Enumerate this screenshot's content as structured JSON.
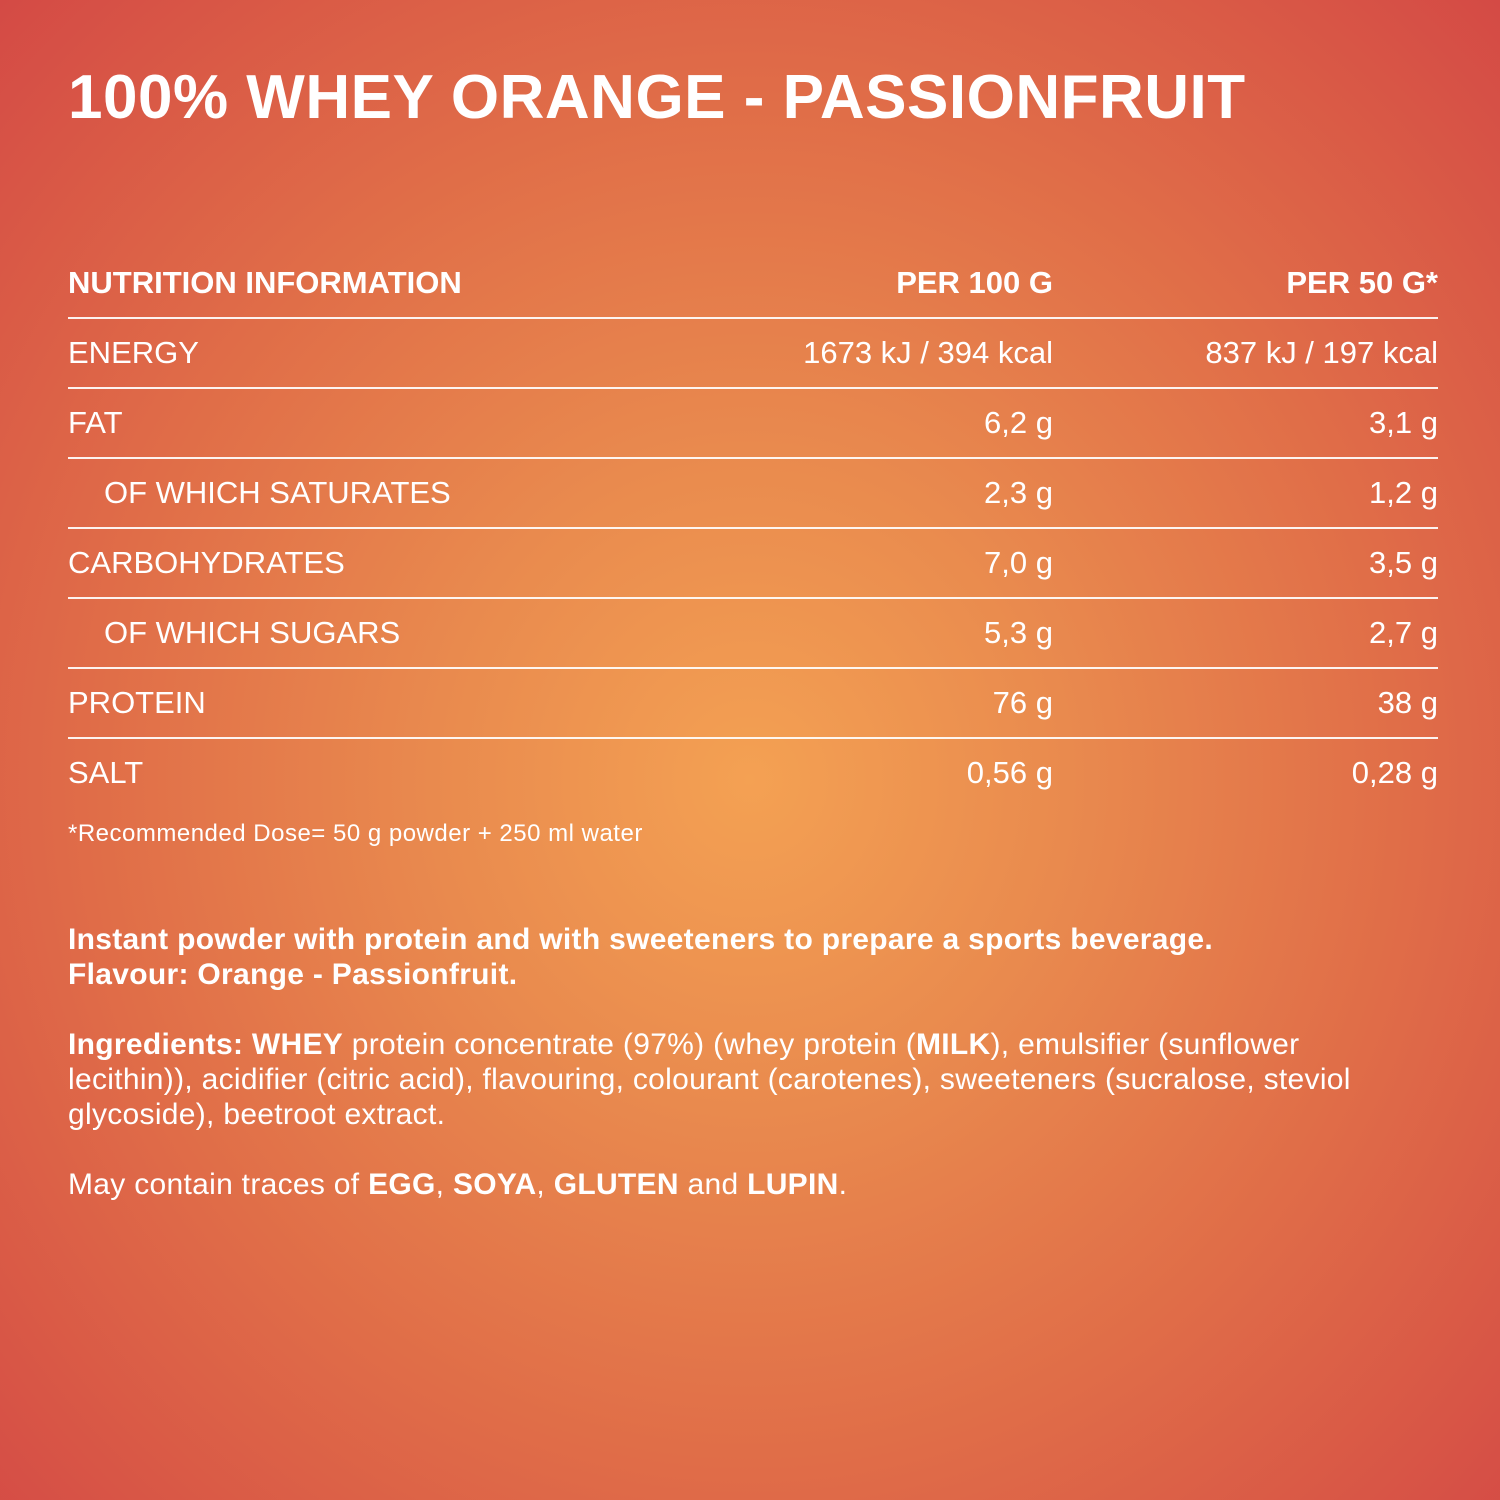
{
  "title": "100% WHEY ORANGE - PASSIONFRUIT",
  "table": {
    "header": [
      "NUTRITION INFORMATION",
      "PER 100 G",
      "PER 50 G*"
    ],
    "rows": [
      [
        "ENERGY",
        "1673 kJ / 394 kcal",
        "837 kJ / 197 kcal"
      ],
      [
        "FAT",
        "6,2 g",
        "3,1 g"
      ],
      [
        "OF WHICH SATURATES",
        "2,3 g",
        "1,2 g"
      ],
      [
        "CARBOHYDRATES",
        "7,0 g",
        "3,5 g"
      ],
      [
        "OF WHICH SUGARS",
        "5,3 g",
        "2,7 g"
      ],
      [
        "PROTEIN",
        "76 g",
        "38 g"
      ],
      [
        "SALT",
        "0,56 g",
        "0,28 g"
      ]
    ]
  },
  "footnote": "*Recommended Dose= 50 g powder + 250 ml water",
  "description": [
    "Instant powder with protein and with sweeteners to prepare a sports beverage.",
    "Flavour: Orange - Passionfruit."
  ],
  "ingredients": [
    "Ingredients: WHEY",
    " protein concentrate (97%) (whey protein (",
    "MILK",
    "), emulsifier (sunflower lecithin)),  acidifier (citric acid), flavouring, colourant (carotenes), sweeteners (sucralose, steviol glycoside), beetroot extract."
  ],
  "allergens": [
    "May contain traces of ",
    "EGG",
    ", ",
    "SOYA",
    ", ",
    "GLUTEN",
    " and ",
    "LUPIN",
    "."
  ]
}
